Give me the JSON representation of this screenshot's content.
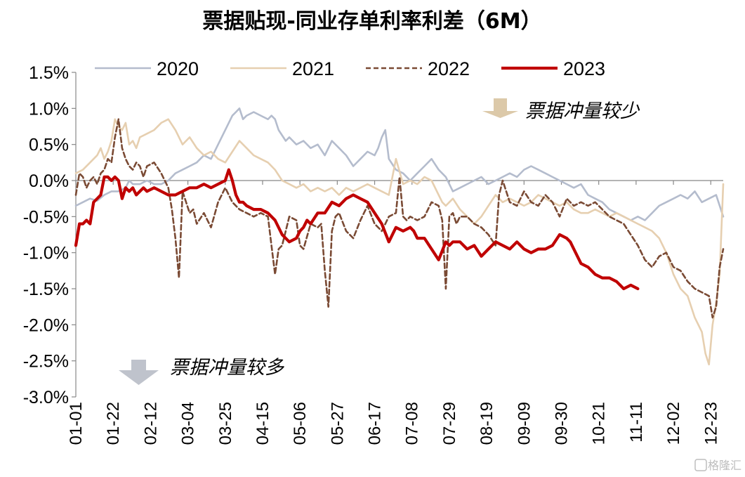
{
  "colors": {
    "s2020": "#b4bccd",
    "s2021": "#e6cfb0",
    "s2022": "#7a4a34",
    "s2023": "#c00000",
    "arrow_up": "#dcc9a9",
    "arrow_down": "#bfc3cc",
    "axis": "#888888"
  },
  "chart_data": {
    "type": "line",
    "title": "票据贴现-同业存单利率利差（6M）",
    "ylim": [
      -3.0,
      1.5
    ],
    "yticks": [
      1.5,
      1.0,
      0.5,
      0.0,
      -0.5,
      -1.0,
      -1.5,
      -2.0,
      -2.5,
      -3.0
    ],
    "ytick_labels": [
      "1.5%",
      "1.0%",
      "0.5%",
      "0.0%",
      "-0.5%",
      "-1.0%",
      "-1.5%",
      "-2.0%",
      "-2.5%",
      "-3.0%"
    ],
    "x_unit": "day of year (01-01 = 0)",
    "xlim": [
      0,
      364
    ],
    "xticks": [
      0,
      21,
      42,
      63,
      84,
      105,
      126,
      147,
      168,
      189,
      210,
      231,
      252,
      273,
      294,
      315,
      336,
      357
    ],
    "xtick_labels": [
      "01-01",
      "01-22",
      "02-12",
      "03-04",
      "03-25",
      "04-15",
      "05-06",
      "05-27",
      "06-17",
      "07-08",
      "07-29",
      "08-19",
      "09-09",
      "09-30",
      "10-21",
      "11-11",
      "12-02",
      "12-23"
    ],
    "legend_position": "top",
    "grid": false,
    "series": [
      {
        "name": "2020",
        "color_key": "s2020",
        "style": "solid",
        "x": [
          0,
          4,
          8,
          12,
          16,
          20,
          24,
          28,
          30,
          32,
          36,
          40,
          44,
          48,
          52,
          56,
          60,
          64,
          68,
          72,
          76,
          80,
          84,
          86,
          88,
          90,
          92,
          94,
          96,
          100,
          104,
          108,
          110,
          112,
          114,
          118,
          120,
          124,
          128,
          132,
          136,
          140,
          144,
          148,
          152,
          156,
          160,
          164,
          168,
          170,
          172,
          174,
          176,
          180,
          184,
          188,
          192,
          196,
          200,
          204,
          208,
          212,
          216,
          220,
          224,
          228,
          232,
          236,
          240,
          244,
          248,
          252,
          256,
          260,
          264,
          268,
          272,
          276,
          280,
          284,
          288,
          292,
          296,
          300,
          304,
          308,
          312,
          316,
          320,
          324,
          328,
          332,
          336,
          340,
          344,
          348,
          352,
          356,
          360,
          364
        ],
        "y": [
          -0.35,
          -0.3,
          -0.25,
          -0.28,
          -0.2,
          -0.15,
          -0.15,
          -0.1,
          0.0,
          -0.05,
          -0.05,
          0.0,
          -0.05,
          -0.05,
          0.0,
          0.1,
          0.15,
          0.2,
          0.25,
          0.35,
          0.3,
          0.5,
          0.7,
          0.8,
          0.9,
          0.95,
          1.0,
          0.85,
          0.9,
          0.95,
          0.9,
          0.85,
          0.9,
          0.85,
          0.7,
          0.55,
          0.6,
          0.5,
          0.55,
          0.45,
          0.5,
          0.35,
          0.55,
          0.45,
          0.35,
          0.2,
          0.3,
          0.4,
          0.35,
          0.45,
          0.6,
          0.7,
          0.3,
          0.15,
          0.1,
          0.0,
          0.1,
          0.2,
          0.3,
          0.15,
          0.05,
          -0.15,
          -0.1,
          -0.05,
          0.0,
          0.05,
          -0.05,
          0.0,
          0.05,
          0.1,
          0.05,
          0.15,
          0.2,
          0.15,
          0.1,
          0.05,
          0.0,
          -0.05,
          -0.1,
          -0.05,
          -0.2,
          -0.25,
          -0.3,
          -0.4,
          -0.45,
          -0.5,
          -0.55,
          -0.5,
          -0.55,
          -0.45,
          -0.35,
          -0.3,
          -0.25,
          -0.2,
          -0.25,
          -0.15,
          -0.3,
          -0.25,
          -0.2,
          -0.5
        ]
      },
      {
        "name": "2021",
        "color_key": "s2021",
        "style": "solid",
        "x": [
          0,
          4,
          8,
          12,
          14,
          16,
          18,
          20,
          22,
          24,
          26,
          28,
          30,
          32,
          34,
          36,
          40,
          44,
          48,
          52,
          56,
          60,
          64,
          68,
          72,
          76,
          80,
          84,
          88,
          92,
          96,
          100,
          104,
          108,
          112,
          116,
          120,
          124,
          128,
          132,
          136,
          140,
          144,
          148,
          152,
          156,
          160,
          164,
          168,
          172,
          176,
          180,
          184,
          188,
          192,
          196,
          200,
          204,
          206,
          208,
          210,
          212,
          216,
          220,
          224,
          228,
          232,
          236,
          240,
          244,
          248,
          252,
          256,
          260,
          264,
          268,
          272,
          276,
          280,
          284,
          288,
          292,
          296,
          300,
          304,
          308,
          312,
          316,
          320,
          324,
          328,
          332,
          336,
          340,
          344,
          348,
          352,
          354,
          356,
          358,
          360,
          362,
          364
        ],
        "y": [
          0.1,
          0.15,
          0.25,
          0.35,
          0.45,
          0.3,
          0.4,
          0.55,
          0.85,
          0.75,
          0.7,
          0.8,
          0.5,
          0.55,
          0.45,
          0.6,
          0.65,
          0.7,
          0.8,
          0.85,
          0.7,
          0.5,
          0.6,
          0.45,
          0.35,
          0.4,
          0.3,
          0.25,
          0.4,
          0.55,
          0.45,
          0.35,
          0.3,
          0.25,
          0.15,
          0.0,
          -0.05,
          -0.1,
          -0.05,
          -0.15,
          -0.1,
          -0.15,
          -0.1,
          -0.2,
          -0.1,
          -0.15,
          -0.1,
          -0.05,
          -0.1,
          -0.15,
          -0.2,
          0.3,
          -0.05,
          0.0,
          -0.05,
          0.05,
          0.0,
          -0.2,
          -0.3,
          -0.35,
          -0.3,
          -0.25,
          -0.4,
          -0.5,
          -0.6,
          -0.5,
          -0.35,
          -0.2,
          -0.3,
          -0.25,
          -0.3,
          -0.35,
          -0.3,
          -0.2,
          -0.25,
          -0.3,
          -0.35,
          -0.3,
          -0.4,
          -0.45,
          -0.45,
          -0.4,
          -0.45,
          -0.5,
          -0.45,
          -0.5,
          -0.55,
          -0.6,
          -0.65,
          -0.7,
          -0.8,
          -1.0,
          -1.3,
          -1.5,
          -1.6,
          -1.9,
          -2.1,
          -2.4,
          -2.55,
          -2.0,
          -1.7,
          -1.3,
          -0.05
        ]
      },
      {
        "name": "2022",
        "color_key": "s2022",
        "style": "dashed",
        "x": [
          0,
          2,
          4,
          6,
          8,
          10,
          12,
          14,
          16,
          18,
          20,
          22,
          24,
          26,
          28,
          30,
          32,
          34,
          36,
          38,
          40,
          44,
          48,
          52,
          54,
          56,
          58,
          60,
          62,
          64,
          66,
          68,
          72,
          76,
          80,
          84,
          88,
          92,
          96,
          100,
          104,
          108,
          110,
          112,
          114,
          116,
          118,
          120,
          124,
          126,
          128,
          132,
          136,
          138,
          140,
          142,
          144,
          146,
          148,
          152,
          156,
          160,
          164,
          168,
          172,
          176,
          180,
          182,
          184,
          186,
          188,
          192,
          196,
          200,
          204,
          206,
          208,
          210,
          212,
          214,
          216,
          220,
          224,
          228,
          232,
          236,
          238,
          240,
          244,
          248,
          252,
          256,
          260,
          264,
          268,
          272,
          276,
          280,
          284,
          288,
          292,
          296,
          300,
          304,
          308,
          312,
          316,
          320,
          324,
          328,
          332,
          336,
          340,
          344,
          348,
          352,
          356,
          358,
          360,
          362,
          364
        ],
        "y": [
          -0.2,
          0.1,
          0.05,
          -0.1,
          0.0,
          0.05,
          -0.05,
          0.1,
          0.15,
          0.3,
          0.25,
          0.6,
          0.85,
          0.45,
          0.3,
          0.2,
          0.15,
          0.25,
          0.2,
          0.05,
          0.2,
          0.25,
          0.1,
          -0.1,
          -0.4,
          -0.8,
          -1.35,
          -0.15,
          -0.3,
          -0.45,
          -0.4,
          -0.6,
          -0.45,
          -0.65,
          -0.3,
          -0.1,
          -0.3,
          -0.4,
          -0.45,
          -0.5,
          -0.45,
          -0.5,
          -0.9,
          -1.3,
          -0.95,
          -0.9,
          -0.7,
          -0.5,
          -0.55,
          -0.9,
          -0.95,
          -0.6,
          -0.65,
          -0.6,
          -1.25,
          -1.75,
          -0.7,
          -0.5,
          -0.45,
          -0.7,
          -0.8,
          -0.55,
          -0.35,
          -0.6,
          -0.7,
          -0.5,
          -0.45,
          0.05,
          -0.5,
          -0.55,
          -0.5,
          -0.55,
          -0.5,
          -0.3,
          -0.35,
          -0.55,
          -1.5,
          -0.5,
          -0.45,
          -0.6,
          -0.5,
          -0.5,
          -0.6,
          -0.65,
          -0.75,
          -0.9,
          -0.2,
          0.0,
          -0.3,
          -0.35,
          -0.15,
          -0.3,
          -0.35,
          -0.2,
          -0.3,
          -0.5,
          -0.25,
          -0.35,
          -0.3,
          -0.35,
          -0.3,
          -0.4,
          -0.5,
          -0.55,
          -0.6,
          -0.75,
          -0.9,
          -1.1,
          -1.2,
          -1.05,
          -1.0,
          -1.2,
          -1.25,
          -1.4,
          -1.5,
          -1.55,
          -1.6,
          -1.9,
          -1.75,
          -1.2,
          -0.95
        ]
      },
      {
        "name": "2023",
        "color_key": "s2023",
        "style": "solid-thick",
        "x": [
          0,
          2,
          4,
          6,
          8,
          10,
          12,
          14,
          16,
          18,
          20,
          22,
          24,
          26,
          28,
          30,
          32,
          34,
          36,
          38,
          40,
          44,
          48,
          52,
          56,
          60,
          64,
          68,
          72,
          76,
          80,
          84,
          86,
          88,
          90,
          92,
          94,
          96,
          100,
          104,
          108,
          112,
          116,
          120,
          124,
          126,
          128,
          130,
          132,
          136,
          140,
          144,
          148,
          152,
          156,
          160,
          164,
          168,
          172,
          176,
          180,
          184,
          188,
          190,
          192,
          196,
          200,
          204,
          208,
          210,
          212,
          216,
          220,
          224,
          228,
          232,
          236,
          240,
          244,
          248,
          252,
          256,
          260,
          264,
          268,
          272,
          276,
          278,
          280,
          284,
          288,
          292,
          296,
          300,
          304,
          308,
          312,
          316
        ],
        "y": [
          -0.9,
          -0.6,
          -0.6,
          -0.55,
          -0.6,
          -0.3,
          -0.25,
          -0.2,
          0.05,
          0.05,
          0.0,
          0.05,
          0.0,
          -0.25,
          -0.1,
          -0.15,
          -0.1,
          -0.2,
          -0.15,
          -0.1,
          -0.15,
          -0.1,
          -0.15,
          -0.2,
          -0.2,
          -0.15,
          -0.1,
          -0.1,
          -0.05,
          -0.1,
          -0.05,
          0.0,
          0.15,
          0.0,
          -0.2,
          -0.3,
          -0.3,
          -0.35,
          -0.4,
          -0.4,
          -0.45,
          -0.55,
          -0.75,
          -0.85,
          -0.8,
          -0.7,
          -0.65,
          -0.55,
          -0.6,
          -0.45,
          -0.45,
          -0.3,
          -0.35,
          -0.25,
          -0.2,
          -0.25,
          -0.3,
          -0.45,
          -0.6,
          -0.85,
          -0.65,
          -0.7,
          -0.65,
          -0.7,
          -0.8,
          -0.8,
          -0.95,
          -1.1,
          -0.85,
          -0.9,
          -0.85,
          -0.85,
          -0.95,
          -0.9,
          -1.05,
          -0.95,
          -0.85,
          -0.9,
          -0.95,
          -0.85,
          -0.95,
          -1.0,
          -0.95,
          -0.95,
          -0.9,
          -0.75,
          -0.8,
          -0.85,
          -0.95,
          -1.15,
          -1.2,
          -1.3,
          -1.35,
          -1.35,
          -1.4,
          -1.5,
          -1.45,
          -1.5
        ]
      }
    ]
  },
  "annotations": {
    "up_text": "票据冲量较少",
    "down_text": "票据冲量较多"
  }
}
